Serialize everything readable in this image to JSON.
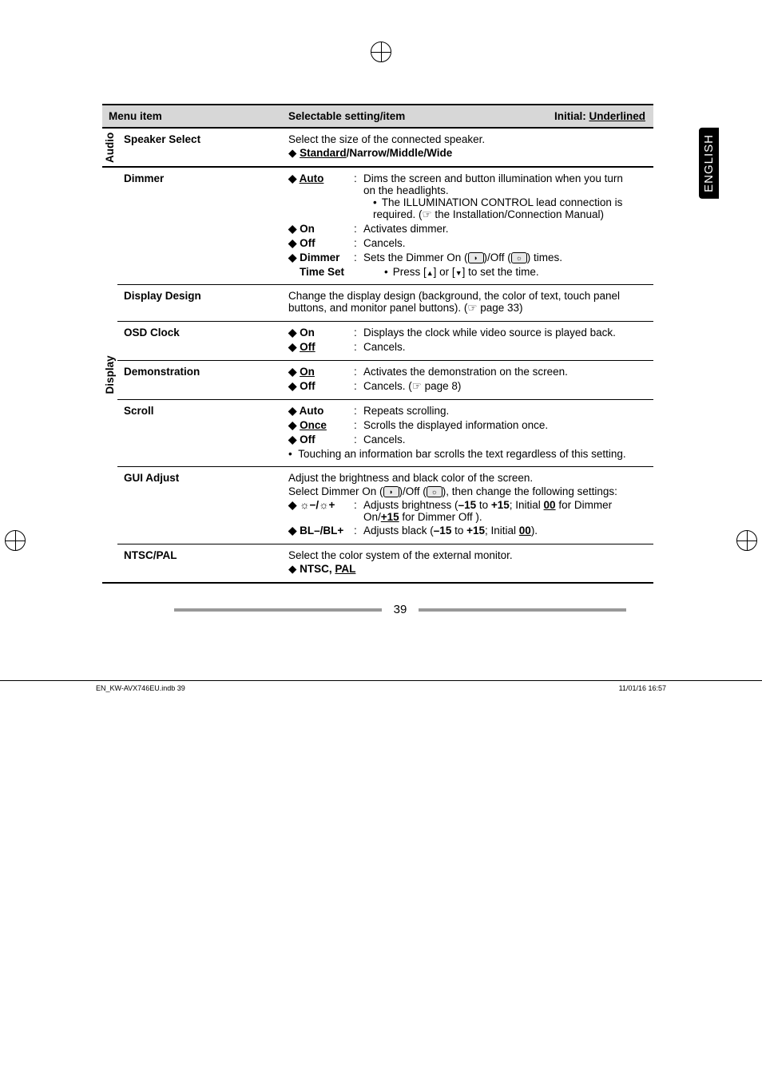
{
  "header": {
    "col1": "Menu item",
    "col2_left": "Selectable setting/item",
    "col2_right_prefix": "Initial: ",
    "col2_right_word": "Underlined"
  },
  "lang_tab": "ENGLISH",
  "sections": [
    {
      "sidelabel": "Audio",
      "rows": [
        {
          "item": "Speaker Select",
          "body_lines": [
            {
              "type": "plain",
              "text": "Select the size of the connected speaker."
            },
            {
              "type": "diamond_mixed",
              "parts": [
                {
                  "text": "Standard",
                  "underline": true,
                  "bold": true
                },
                {
                  "text": "/Narrow/Middle/Wide",
                  "bold": true
                }
              ]
            }
          ],
          "border": "thick"
        }
      ]
    },
    {
      "sidelabel": "Display",
      "rows": [
        {
          "item": "Dimmer",
          "options": [
            {
              "label": "Auto",
              "label_underline": true,
              "desc": "Dims the screen and button illumination when you turn on the headlights.",
              "sub": [
                "The ILLUMINATION CONTROL lead connection is required. (☞ the Installation/Connection Manual)"
              ]
            },
            {
              "label": "On",
              "desc": "Activates dimmer."
            },
            {
              "label": "Off",
              "desc": "Cancels."
            },
            {
              "label": "Dimmer Time Set",
              "label_twoline": true,
              "desc_html": "Sets the Dimmer On (<span class='icon-on'></span>)/Off (<span class='icon-off'></span>) times.",
              "sub": [
                "Press [<span class='tri-up'></span>] or [<span class='tri-down'></span>] to set the time."
              ]
            }
          ],
          "border": "thin"
        },
        {
          "item": "Display Design",
          "body_lines": [
            {
              "type": "plain",
              "text": "Change the display design (background, the color of text, touch panel buttons, and monitor panel buttons). (☞ page 33)"
            }
          ],
          "border": "thin"
        },
        {
          "item": "OSD Clock",
          "options": [
            {
              "label": "On",
              "desc": "Displays the clock while video source is played back."
            },
            {
              "label": "Off",
              "label_underline": true,
              "desc": "Cancels."
            }
          ],
          "border": "thin"
        },
        {
          "item": "Demonstration",
          "options": [
            {
              "label": "On",
              "label_underline": true,
              "desc": "Activates the demonstration on the screen."
            },
            {
              "label": "Off",
              "desc": "Cancels. (☞ page 8)"
            }
          ],
          "border": "thin"
        },
        {
          "item": "Scroll",
          "options": [
            {
              "label": "Auto",
              "desc": "Repeats scrolling."
            },
            {
              "label": "Once",
              "label_underline": true,
              "desc": "Scrolls the displayed information once."
            },
            {
              "label": "Off",
              "desc": "Cancels."
            }
          ],
          "trailing_bullet": "Touching an information bar scrolls the text regardless of this setting.",
          "border": "thin"
        },
        {
          "item": "GUI Adjust",
          "body_lines": [
            {
              "type": "plain",
              "text": "Adjust the brightness and black color of the screen."
            },
            {
              "type": "plain_html",
              "html": "Select Dimmer On (<span class='icon-on'></span>)/Off (<span class='icon-off'></span>), then change the following settings:"
            }
          ],
          "options": [
            {
              "label": "☼−/☼+",
              "desc_html": "Adjusts brightness (<b>–15</b> to <b>+15</b>; Initial <b class='und'>00</b> for Dimmer On/<b class='und'>+15</b> for Dimmer Off )."
            },
            {
              "label": "BL–/BL+",
              "desc_html": "Adjusts black (<b>–15</b> to <b>+15</b>; Initial <b class='und'>00</b>)."
            }
          ],
          "border": "thin"
        },
        {
          "item": "NTSC/PAL",
          "body_lines": [
            {
              "type": "plain",
              "text": "Select the color system of the external monitor."
            },
            {
              "type": "diamond_mixed",
              "parts": [
                {
                  "text": "NTSC, ",
                  "bold": true
                },
                {
                  "text": "PAL",
                  "underline": true,
                  "bold": true
                }
              ]
            }
          ],
          "border": "thick"
        }
      ]
    }
  ],
  "page_number": "39",
  "footer_left": "EN_KW-AVX746EU.indb   39",
  "footer_right": "11/01/16   16:57"
}
